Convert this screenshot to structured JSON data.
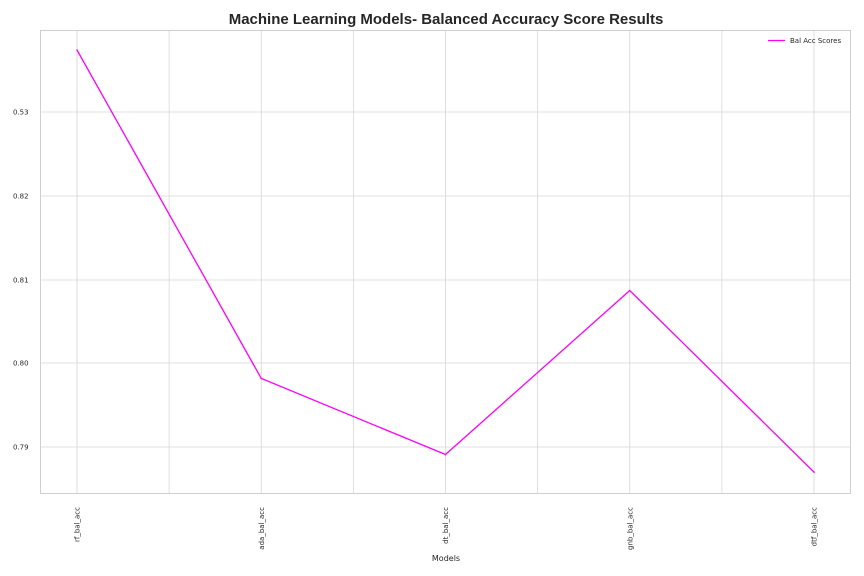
{
  "chart_data": {
    "type": "line",
    "title": "Machine Learning Models- Balanced Accuracy Score Results",
    "xlabel": "Models",
    "ylabel": "",
    "categories": [
      "rf_bal_acc",
      "ada_bal_acc",
      "dt_bal_acc",
      "gnb_bal_acc",
      "dtf_bal_acc"
    ],
    "series": [
      {
        "name": "Bal Acc Scores",
        "color": "#ff00ff",
        "values": [
          0.5373,
          0.7982,
          0.7891,
          0.8087,
          0.787
        ]
      }
    ],
    "yticks": [
      0.79,
      0.8,
      0.81,
      0.82,
      0.53
    ],
    "ytick_labels": [
      "0.79",
      "0.80",
      "0.81",
      "0.82",
      "0.53"
    ],
    "grid": true,
    "legend_position": "top-right"
  }
}
